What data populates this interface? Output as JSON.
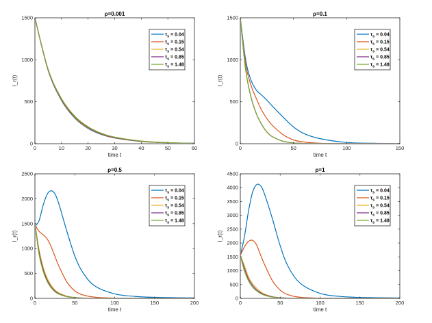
{
  "chart_data": [
    {
      "type": "line",
      "title": "ρ=0.001",
      "xlabel": "time t",
      "ylabel": "I_r(t)",
      "xlim": [
        0,
        60
      ],
      "ylim": [
        0,
        1500
      ],
      "xticks": [
        0,
        10,
        20,
        30,
        40,
        50,
        60
      ],
      "yticks": [
        0,
        500,
        1000,
        1500
      ],
      "grid": false,
      "legend": "top-right",
      "x": [
        0,
        5,
        10,
        15,
        20,
        25,
        30,
        40,
        50,
        60
      ],
      "series": [
        {
          "name": "τ_s = 0.04",
          "values": [
            1500,
            870,
            515,
            305,
            182,
            110,
            68,
            26,
            10,
            4
          ]
        },
        {
          "name": "τ_s = 0.15",
          "values": [
            1500,
            875,
            522,
            312,
            188,
            115,
            71,
            28,
            11,
            4
          ]
        },
        {
          "name": "τ_s = 0.54",
          "values": [
            1500,
            880,
            530,
            320,
            195,
            120,
            75,
            30,
            12,
            5
          ]
        },
        {
          "name": "τ_s = 0.85",
          "values": [
            1500,
            882,
            533,
            323,
            198,
            122,
            77,
            31,
            12,
            5
          ]
        },
        {
          "name": "τ_s = 1.48",
          "values": [
            1500,
            885,
            538,
            328,
            202,
            125,
            79,
            32,
            13,
            5
          ]
        }
      ]
    },
    {
      "type": "line",
      "title": "ρ=0.1",
      "xlabel": "time t",
      "ylabel": "I_r(t)",
      "xlim": [
        0,
        150
      ],
      "ylim": [
        0,
        1500
      ],
      "xticks": [
        0,
        50,
        100,
        150
      ],
      "yticks": [
        0,
        500,
        1000,
        1500
      ],
      "grid": false,
      "legend": "top-right",
      "x": [
        0,
        5,
        10,
        15,
        20,
        25,
        30,
        40,
        50,
        60,
        75,
        100,
        125,
        150
      ],
      "series": [
        {
          "name": "τ_s = 0.04",
          "values": [
            1500,
            1000,
            760,
            640,
            580,
            520,
            450,
            320,
            200,
            120,
            60,
            15,
            5,
            2
          ]
        },
        {
          "name": "τ_s = 0.15",
          "values": [
            1500,
            950,
            700,
            540,
            400,
            300,
            220,
            110,
            45,
            20,
            6,
            1,
            0,
            0
          ]
        },
        {
          "name": "τ_s = 0.54",
          "values": [
            1500,
            880,
            560,
            360,
            230,
            140,
            85,
            30,
            10,
            3,
            1,
            0,
            0,
            0
          ]
        },
        {
          "name": "τ_s = 0.85",
          "values": [
            1500,
            880,
            560,
            360,
            230,
            140,
            85,
            30,
            10,
            3,
            1,
            0,
            0,
            0
          ]
        },
        {
          "name": "τ_s = 1.48",
          "values": [
            1500,
            882,
            562,
            362,
            232,
            142,
            86,
            31,
            10,
            3,
            1,
            0,
            0,
            0
          ]
        }
      ]
    },
    {
      "type": "line",
      "title": "ρ=0.5",
      "xlabel": "time t",
      "ylabel": "I_r(t)",
      "xlim": [
        0,
        200
      ],
      "ylim": [
        0,
        2500
      ],
      "xticks": [
        0,
        50,
        100,
        150,
        200
      ],
      "yticks": [
        0,
        500,
        1000,
        1500,
        2000,
        2500
      ],
      "grid": false,
      "legend": "top-right",
      "x": [
        0,
        5,
        10,
        15,
        20,
        25,
        30,
        40,
        50,
        60,
        75,
        100,
        125,
        150,
        200
      ],
      "series": [
        {
          "name": "τ_s = 0.04",
          "values": [
            1450,
            1550,
            1850,
            2080,
            2160,
            2100,
            1900,
            1350,
            850,
            520,
            250,
            90,
            40,
            20,
            10
          ]
        },
        {
          "name": "τ_s = 0.15",
          "values": [
            1480,
            1350,
            1280,
            1200,
            1050,
            850,
            650,
            330,
            150,
            70,
            25,
            5,
            2,
            0,
            0
          ]
        },
        {
          "name": "τ_s = 0.54",
          "values": [
            1500,
            1000,
            650,
            420,
            270,
            170,
            110,
            45,
            18,
            8,
            2,
            0,
            0,
            0,
            0
          ]
        },
        {
          "name": "τ_s = 0.85",
          "values": [
            1500,
            950,
            600,
            380,
            240,
            150,
            95,
            38,
            15,
            6,
            2,
            0,
            0,
            0,
            0
          ]
        },
        {
          "name": "τ_s = 1.48",
          "values": [
            1500,
            900,
            560,
            350,
            220,
            135,
            85,
            33,
            13,
            5,
            1,
            0,
            0,
            0,
            0
          ]
        }
      ]
    },
    {
      "type": "line",
      "title": "ρ=1",
      "xlabel": "time t",
      "ylabel": "I_r(t)",
      "xlim": [
        0,
        200
      ],
      "ylim": [
        0,
        4500
      ],
      "xticks": [
        0,
        50,
        100,
        150,
        200
      ],
      "yticks": [
        0,
        500,
        1000,
        1500,
        2000,
        2500,
        3000,
        3500,
        4000,
        4500
      ],
      "grid": false,
      "legend": "top-right",
      "x": [
        0,
        5,
        10,
        15,
        20,
        25,
        30,
        40,
        50,
        60,
        75,
        100,
        125,
        150,
        200
      ],
      "series": [
        {
          "name": "τ_s = 0.04",
          "values": [
            1550,
            2200,
            3100,
            3800,
            4100,
            4080,
            3800,
            2900,
            1900,
            1150,
            550,
            180,
            70,
            35,
            15
          ]
        },
        {
          "name": "τ_s = 0.15",
          "values": [
            1550,
            1850,
            2050,
            2100,
            1950,
            1600,
            1250,
            650,
            300,
            130,
            40,
            8,
            2,
            0,
            0
          ]
        },
        {
          "name": "τ_s = 0.54",
          "values": [
            1550,
            1200,
            800,
            550,
            380,
            250,
            160,
            65,
            25,
            10,
            3,
            0,
            0,
            0,
            0
          ]
        },
        {
          "name": "τ_s = 0.85",
          "values": [
            1550,
            1100,
            720,
            480,
            320,
            210,
            135,
            55,
            22,
            9,
            2,
            0,
            0,
            0,
            0
          ]
        },
        {
          "name": "τ_s = 1.48",
          "values": [
            1550,
            1000,
            650,
            420,
            280,
            180,
            115,
            45,
            18,
            7,
            2,
            0,
            0,
            0,
            0
          ]
        }
      ]
    }
  ],
  "colors": [
    "#0072BD",
    "#D95319",
    "#EDB120",
    "#7E2F8E",
    "#77AC30"
  ]
}
